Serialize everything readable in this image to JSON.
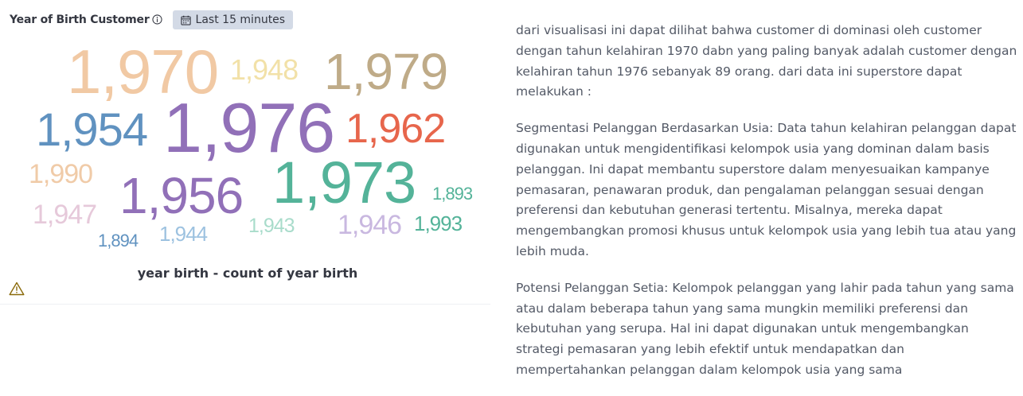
{
  "panel": {
    "title": "Year of Birth Customer",
    "time_range": "Last 15 minutes",
    "caption": "year birth - count of year birth"
  },
  "icons": {
    "info": "info-icon",
    "calendar": "calendar-icon",
    "warning": "warning-icon"
  },
  "colors": {
    "badge_bg": "#d3dae6",
    "warning": "#8a6a0a"
  },
  "chart_data": {
    "type": "tagcloud",
    "title": "",
    "words": [
      {
        "text": "1,970",
        "color": "#f1c9a4"
      },
      {
        "text": "1,948",
        "color": "#f2e1a8"
      },
      {
        "text": "1,979",
        "color": "#bfab88"
      },
      {
        "text": "1,954",
        "color": "#6092c0"
      },
      {
        "text": "1,976",
        "color": "#9170b8"
      },
      {
        "text": "1,962",
        "color": "#e7664c"
      },
      {
        "text": "1,990",
        "color": "#f0cba8"
      },
      {
        "text": "1,956",
        "color": "#9170b8"
      },
      {
        "text": "1,973",
        "color": "#54b399"
      },
      {
        "text": "1,893",
        "color": "#54b399"
      },
      {
        "text": "1,947",
        "color": "#e6c9da"
      },
      {
        "text": "1,943",
        "color": "#a9dccb"
      },
      {
        "text": "1,946",
        "color": "#c9b8e0"
      },
      {
        "text": "1,993",
        "color": "#54b399"
      },
      {
        "text": "1,894",
        "color": "#6092c0"
      },
      {
        "text": "1,944",
        "color": "#9dc2e0"
      }
    ]
  },
  "description": {
    "paragraphs": [
      "dari visualisasi ini dapat dilihat bahwa customer di dominasi oleh customer dengan tahun kelahiran 1970 dabn yang paling banyak adalah customer dengan kelahiran tahun 1976 sebanyak 89 orang. dari data ini superstore dapat melakukan :",
      "Segmentasi Pelanggan Berdasarkan Usia: Data tahun kelahiran pelanggan dapat digunakan untuk mengidentifikasi kelompok usia yang dominan dalam basis pelanggan. Ini dapat membantu superstore dalam menyesuaikan kampanye pemasaran, penawaran produk, dan pengalaman pelanggan sesuai dengan preferensi dan kebutuhan generasi tertentu. Misalnya, mereka dapat mengembangkan promosi khusus untuk kelompok usia yang lebih tua atau yang lebih muda.",
      "Potensi Pelanggan Setia: Kelompok pelanggan yang lahir pada tahun yang sama atau dalam beberapa tahun yang sama mungkin memiliki preferensi dan kebutuhan yang serupa. Hal ini dapat digunakan untuk mengembangkan strategi pemasaran yang lebih efektif untuk mendapatkan dan mempertahankan pelanggan dalam kelompok usia yang sama"
    ]
  }
}
